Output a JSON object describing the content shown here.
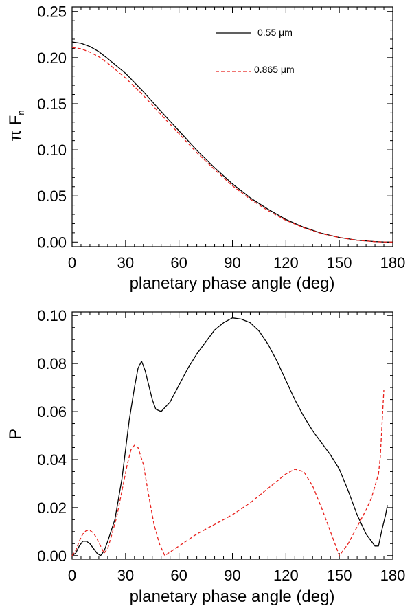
{
  "chart_data": [
    {
      "type": "line",
      "title": "",
      "xlabel": "planetary phase angle (deg)",
      "ylabel": "π F",
      "ylabel_sub": "n",
      "xlim": [
        0,
        180
      ],
      "ylim": [
        -0.005,
        0.255
      ],
      "xticks": [
        0,
        30,
        60,
        90,
        120,
        150,
        180
      ],
      "xtick_labels": [
        "0",
        "30",
        "60",
        "90",
        "120",
        "150",
        "180"
      ],
      "yticks": [
        0.0,
        0.05,
        0.1,
        0.15,
        0.2,
        0.25
      ],
      "ytick_labels": [
        "0.00",
        "0.05",
        "0.10",
        "0.15",
        "0.20",
        "0.25"
      ],
      "legend": {
        "position": "top-right"
      },
      "series": [
        {
          "name": "0.55 μm",
          "color": "#000000",
          "dash": "solid",
          "x": [
            0,
            5,
            10,
            15,
            20,
            30,
            40,
            50,
            60,
            70,
            80,
            90,
            100,
            110,
            120,
            130,
            140,
            150,
            160,
            170,
            175,
            180
          ],
          "y": [
            0.217,
            0.2155,
            0.212,
            0.2065,
            0.199,
            0.183,
            0.163,
            0.1415,
            0.1205,
            0.0995,
            0.0805,
            0.063,
            0.048,
            0.0355,
            0.0245,
            0.016,
            0.0095,
            0.005,
            0.002,
            0.0005,
            0.0001,
            0.0
          ]
        },
        {
          "name": "0.865 μm",
          "color": "#e8201c",
          "dash": "dashed",
          "x": [
            0,
            5,
            10,
            15,
            20,
            30,
            40,
            50,
            60,
            70,
            80,
            90,
            100,
            110,
            120,
            130,
            140,
            150,
            160,
            170,
            175,
            180
          ],
          "y": [
            0.211,
            0.2095,
            0.206,
            0.201,
            0.194,
            0.178,
            0.159,
            0.138,
            0.1175,
            0.097,
            0.0785,
            0.061,
            0.0465,
            0.034,
            0.0235,
            0.0155,
            0.0092,
            0.0048,
            0.0019,
            0.0004,
            0.0001,
            0.0
          ]
        }
      ]
    },
    {
      "type": "line",
      "title": "",
      "xlabel": "planetary phase angle (deg)",
      "ylabel": "P",
      "xlim": [
        0,
        180
      ],
      "ylim": [
        -0.0015,
        0.1015
      ],
      "xticks": [
        0,
        30,
        60,
        90,
        120,
        150,
        180
      ],
      "xtick_labels": [
        "0",
        "30",
        "60",
        "90",
        "120",
        "150",
        "180"
      ],
      "yticks": [
        0.0,
        0.02,
        0.04,
        0.06,
        0.08,
        0.1
      ],
      "ytick_labels": [
        "0.00",
        "0.02",
        "0.04",
        "0.06",
        "0.08",
        "0.10"
      ],
      "series": [
        {
          "name": "0.55 μm",
          "color": "#000000",
          "dash": "solid",
          "x": [
            0,
            2,
            4,
            6,
            8,
            10,
            12,
            14,
            16,
            18,
            20,
            24,
            28,
            32,
            35,
            37,
            39,
            41,
            43,
            45,
            47,
            50,
            55,
            60,
            65,
            70,
            75,
            80,
            85,
            90,
            95,
            100,
            105,
            110,
            115,
            120,
            125,
            130,
            135,
            140,
            145,
            150,
            155,
            160,
            165,
            170,
            172,
            174,
            176,
            177
          ],
          "y": [
            0.0,
            0.001,
            0.004,
            0.006,
            0.006,
            0.005,
            0.003,
            0.001,
            0.0,
            0.002,
            0.006,
            0.015,
            0.032,
            0.056,
            0.07,
            0.078,
            0.081,
            0.077,
            0.071,
            0.065,
            0.061,
            0.06,
            0.064,
            0.071,
            0.078,
            0.084,
            0.089,
            0.094,
            0.097,
            0.099,
            0.0985,
            0.097,
            0.0935,
            0.088,
            0.081,
            0.073,
            0.065,
            0.058,
            0.052,
            0.047,
            0.042,
            0.036,
            0.027,
            0.017,
            0.009,
            0.004,
            0.004,
            0.011,
            0.017,
            0.021
          ]
        },
        {
          "name": "0.865 μm",
          "color": "#e8201c",
          "dash": "dashed",
          "x": [
            0,
            2,
            4,
            6,
            8,
            10,
            12,
            14,
            16,
            18,
            20,
            22,
            25,
            28,
            31,
            33,
            35,
            37,
            40,
            43,
            46,
            49,
            52,
            56,
            62,
            70,
            80,
            90,
            100,
            110,
            115,
            120,
            125,
            130,
            135,
            140,
            145,
            148,
            150,
            152,
            155,
            160,
            165,
            168,
            170,
            172,
            173,
            174,
            175
          ],
          "y": [
            0.0,
            0.002,
            0.006,
            0.009,
            0.0105,
            0.0105,
            0.0095,
            0.007,
            0.004,
            0.001,
            0.003,
            0.008,
            0.016,
            0.027,
            0.038,
            0.044,
            0.046,
            0.045,
            0.038,
            0.025,
            0.013,
            0.005,
            0.0,
            0.002,
            0.005,
            0.009,
            0.013,
            0.017,
            0.022,
            0.028,
            0.031,
            0.034,
            0.036,
            0.035,
            0.029,
            0.02,
            0.01,
            0.004,
            0.0,
            0.002,
            0.005,
            0.012,
            0.019,
            0.024,
            0.029,
            0.034,
            0.041,
            0.055,
            0.069
          ]
        }
      ]
    }
  ]
}
